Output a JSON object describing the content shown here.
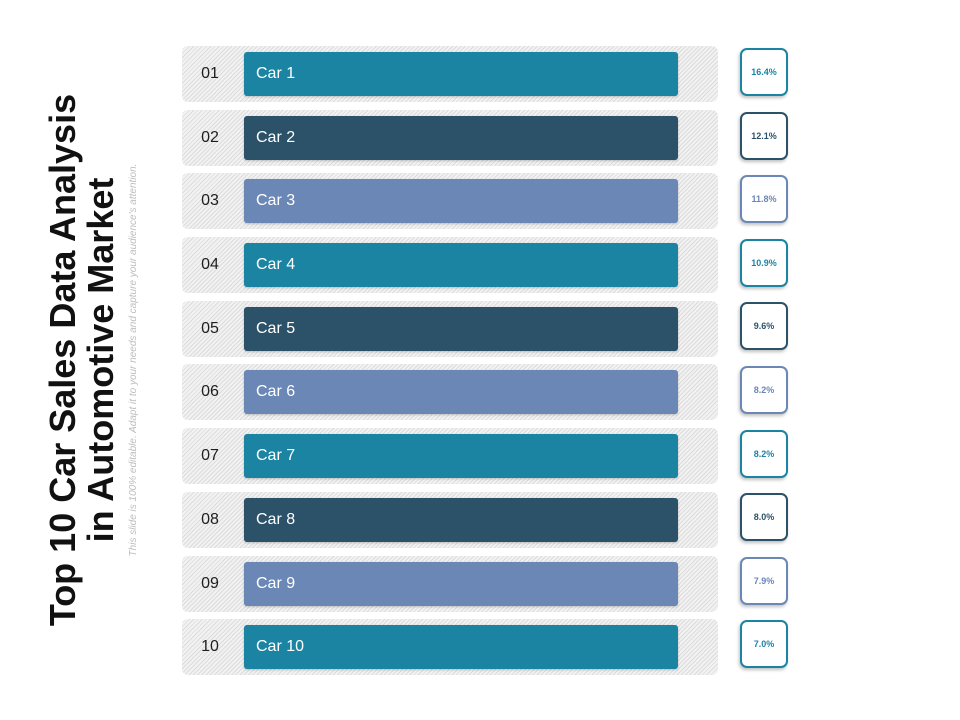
{
  "title": "Top 10 Car Sales Data Analysis in Automotive Market",
  "subtitle": "This slide is 100% editable. Adapt it to your needs and  capture your audience's attention.",
  "colors": {
    "teal": "#1b84a3",
    "navy": "#2c5269",
    "slate": "#6b87b5"
  },
  "items": [
    {
      "num": "01",
      "label": "Car 1",
      "value": "16.4%",
      "color": "#1b84a3"
    },
    {
      "num": "02",
      "label": "Car 2",
      "value": "12.1%",
      "color": "#2c5269"
    },
    {
      "num": "03",
      "label": "Car 3",
      "value": "11.8%",
      "color": "#6b87b5"
    },
    {
      "num": "04",
      "label": "Car 4",
      "value": "10.9%",
      "color": "#1b84a3"
    },
    {
      "num": "05",
      "label": "Car 5",
      "value": "9.6%",
      "color": "#2c5269"
    },
    {
      "num": "06",
      "label": "Car 6",
      "value": "8.2%",
      "color": "#6b87b5"
    },
    {
      "num": "07",
      "label": "Car 7",
      "value": "8.2%",
      "color": "#1b84a3"
    },
    {
      "num": "08",
      "label": "Car 8",
      "value": "8.0%",
      "color": "#2c5269"
    },
    {
      "num": "09",
      "label": "Car 9",
      "value": "7.9%",
      "color": "#6b87b5"
    },
    {
      "num": "10",
      "label": "Car 10",
      "value": "7.0%",
      "color": "#1b84a3"
    }
  ]
}
